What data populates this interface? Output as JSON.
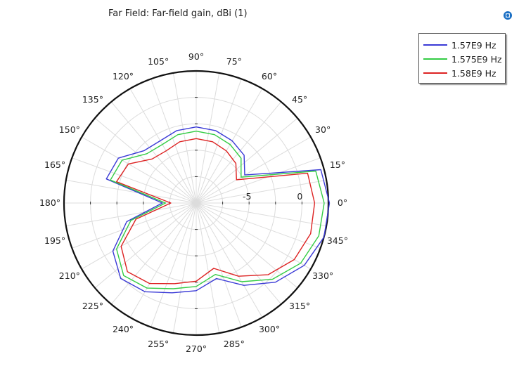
{
  "chart_data": {
    "type": "polar-line",
    "title": "Far Field: Far-field gain, dBi (1)",
    "angle_ticks": [
      "0°",
      "15°",
      "30°",
      "45°",
      "60°",
      "75°",
      "90°",
      "105°",
      "120°",
      "135°",
      "150°",
      "165°",
      "180°",
      "195°",
      "210°",
      "225°",
      "240°",
      "255°",
      "270°",
      "285°",
      "300°",
      "315°",
      "330°",
      "345°"
    ],
    "radial_ticks": [
      {
        "value": -5,
        "label": "-5"
      },
      {
        "value": 0,
        "label": "0"
      }
    ],
    "r_range": [
      -10,
      2.5
    ],
    "grid": true,
    "legend_position": "top-right",
    "angles_deg": [
      0,
      15,
      30,
      45,
      60,
      75,
      90,
      105,
      120,
      135,
      150,
      165,
      180,
      195,
      210,
      225,
      240,
      255,
      270,
      285,
      300,
      315,
      330,
      345
    ],
    "series": [
      {
        "name": "1.57E9 Hz",
        "color": "#3a3ad6",
        "values": [
          2.6,
          2.2,
          -4.7,
          -3.6,
          -3.2,
          -2.9,
          -2.8,
          -2.9,
          -3.2,
          -3.0,
          -1.5,
          -1.2,
          -6.8,
          -3.2,
          -0.9,
          0.1,
          -0.3,
          -1.2,
          -1.7,
          -2.6,
          -1.0,
          0.6,
          1.8,
          2.5
        ]
      },
      {
        "name": "1.575E9 Hz",
        "color": "#33cc44",
        "values": [
          2.1,
          1.7,
          -5.1,
          -4.0,
          -3.6,
          -3.3,
          -3.2,
          -3.3,
          -3.6,
          -3.4,
          -1.9,
          -1.6,
          -7.1,
          -3.6,
          -1.3,
          -0.3,
          -0.7,
          -1.6,
          -2.1,
          -3.0,
          -1.4,
          0.2,
          1.4,
          2.0
        ]
      },
      {
        "name": "1.58E9 Hz",
        "color": "#dd2222",
        "values": [
          1.2,
          0.9,
          -5.6,
          -4.7,
          -4.3,
          -4.0,
          -3.9,
          -4.0,
          -4.3,
          -4.1,
          -2.6,
          -2.2,
          -7.6,
          -4.1,
          -1.8,
          -0.8,
          -1.2,
          -2.1,
          -2.6,
          -3.6,
          -2.0,
          -0.4,
          0.7,
          1.2
        ]
      }
    ]
  },
  "icons": {
    "app_icon": "comsol-logo-icon"
  }
}
